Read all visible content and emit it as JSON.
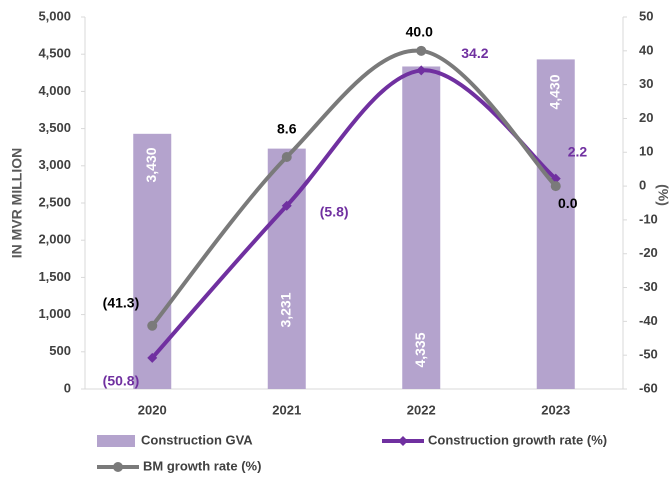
{
  "chart_data": {
    "type": "combo",
    "y_label": "IN MVR MILLION",
    "y2_label": "(%)",
    "categories": [
      "2020",
      "2021",
      "2022",
      "2023"
    ],
    "series": [
      {
        "name": "Construction GVA",
        "type": "bar",
        "color": "#b4a3cd",
        "values": [
          3430,
          3231,
          4335,
          4430
        ],
        "value_labels": [
          "3,430",
          "3,231",
          "4,335",
          "4,430"
        ]
      },
      {
        "name": "Construction growth rate (%)",
        "type": "line",
        "axis": "y2",
        "marker": "diamond",
        "color": "#7030a0",
        "values": [
          -50.8,
          -5.8,
          34.2,
          2.2
        ],
        "value_labels": [
          "(50.8)",
          "(5.8)",
          "34.2",
          "2.2"
        ]
      },
      {
        "name": "BM growth rate (%)",
        "type": "line",
        "axis": "y2",
        "marker": "circle",
        "color": "#7a7a7a",
        "values": [
          -41.3,
          8.6,
          40.0,
          0.0
        ],
        "value_labels": [
          "(41.3)",
          "8.6",
          "40.0",
          "0.0"
        ]
      }
    ],
    "ylim": [
      0,
      5000
    ],
    "yticks": [
      0,
      500,
      {
        "value": 1000,
        "label": "1,000"
      },
      {
        "value": 1500,
        "label": "1,500"
      },
      {
        "value": 2000,
        "label": "2,000"
      },
      {
        "value": 2500,
        "label": "2,500"
      },
      {
        "value": 3000,
        "label": "3,000"
      },
      {
        "value": 3500,
        "label": "3,500"
      },
      {
        "value": 4000,
        "label": "4,000"
      },
      {
        "value": 4500,
        "label": "4,500"
      },
      {
        "value": 5000,
        "label": "5,000"
      }
    ],
    "y2lim": [
      -60,
      50
    ],
    "y2ticks": [
      -60,
      -50,
      -40,
      -30,
      -20,
      -10,
      0,
      10,
      20,
      30,
      40,
      50
    ],
    "grid": false,
    "legend": "bottom"
  }
}
